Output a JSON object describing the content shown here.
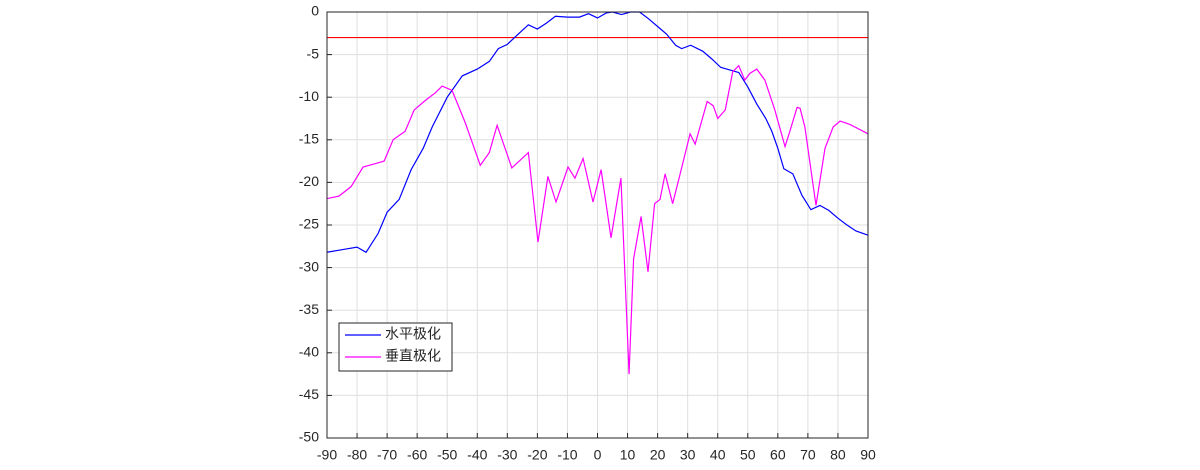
{
  "chart_data": {
    "type": "line",
    "xlim": [
      -90,
      90
    ],
    "xticks": [
      -90,
      -80,
      -70,
      -60,
      -50,
      -40,
      -30,
      -20,
      -10,
      0,
      10,
      20,
      30,
      40,
      50,
      60,
      70,
      80,
      90
    ],
    "ylim": [
      -50,
      0
    ],
    "yticks": [
      -50,
      -45,
      -40,
      -35,
      -30,
      -25,
      -20,
      -15,
      -10,
      -5,
      0
    ],
    "grid": true,
    "legend": "lower left",
    "hlines": [
      {
        "value": -3,
        "color": "#ff0000"
      }
    ],
    "series": [
      {
        "name": "水平极化",
        "color": "#0000ff",
        "x": [
          -90,
          -85,
          -80,
          -77,
          -73,
          -70,
          -66,
          -62,
          -58,
          -55,
          -50,
          -45,
          -40,
          -36,
          -33,
          -30,
          -27,
          -23,
          -20,
          -17,
          -14,
          -10,
          -6,
          -3,
          0,
          3,
          5,
          8,
          11,
          14,
          17,
          20,
          23,
          26,
          28,
          31,
          35,
          38,
          41,
          44,
          47,
          50,
          53,
          56,
          58,
          60,
          62,
          65,
          68,
          71,
          74,
          77,
          80,
          83,
          86,
          90
        ],
        "values": [
          -28.2,
          -27.9,
          -27.6,
          -28.2,
          -26,
          -23.5,
          -22,
          -18.5,
          -16,
          -13.5,
          -10,
          -7.5,
          -6.7,
          -5.8,
          -4.3,
          -3.8,
          -2.8,
          -1.5,
          -2,
          -1.3,
          -0.5,
          -0.6,
          -0.6,
          -0.2,
          -0.7,
          -0.1,
          0,
          -0.3,
          0,
          0,
          -0.8,
          -1.7,
          -2.6,
          -3.9,
          -4.3,
          -3.9,
          -4.6,
          -5.5,
          -6.5,
          -6.8,
          -7.1,
          -8.8,
          -10.8,
          -12.5,
          -14,
          -16,
          -18.4,
          -19,
          -21.5,
          -23.2,
          -22.7,
          -23.3,
          -24.2,
          -25,
          -25.7,
          -26.2
        ]
      },
      {
        "name": "垂直极化",
        "color": "#ff00ff",
        "x": [
          -90,
          -86,
          -82,
          -78,
          -74,
          -71,
          -68,
          -64,
          -61,
          -57,
          -54,
          -51.7,
          -48.4,
          -44,
          -39,
          -36,
          -33.4,
          -28.5,
          -23,
          -19.8,
          -16.5,
          -13.8,
          -9.8,
          -7.5,
          -4.8,
          -1.5,
          1.2,
          4.5,
          7.8,
          10.5,
          12,
          14.5,
          16.8,
          19,
          20.8,
          22.5,
          25,
          27.5,
          30.8,
          32.5,
          36.5,
          38.5,
          40,
          42.5,
          45,
          47,
          49,
          50.7,
          53,
          55.7,
          59,
          62.4,
          64,
          66.4,
          67.4,
          69,
          72.7,
          75.7,
          78.4,
          80.7,
          84,
          90
        ],
        "values": [
          -21.9,
          -21.6,
          -20.5,
          -18.2,
          -17.8,
          -17.5,
          -15,
          -14,
          -11.5,
          -10.3,
          -9.5,
          -8.7,
          -9.2,
          -13,
          -18,
          -16.5,
          -13.3,
          -18.3,
          -16.5,
          -27,
          -19.3,
          -22.3,
          -18.2,
          -19.5,
          -17.2,
          -22.3,
          -18.5,
          -26.5,
          -19.5,
          -42.5,
          -29,
          -24,
          -30.5,
          -22.5,
          -22,
          -19,
          -22.5,
          -19,
          -14.3,
          -15.5,
          -10.5,
          -11,
          -12.5,
          -11.5,
          -7,
          -6.3,
          -8,
          -7.2,
          -6.7,
          -8,
          -11.5,
          -15.8,
          -14,
          -11.2,
          -11.3,
          -13.5,
          -22.7,
          -16,
          -13.5,
          -12.8,
          -13.2,
          -14.3
        ]
      }
    ]
  }
}
